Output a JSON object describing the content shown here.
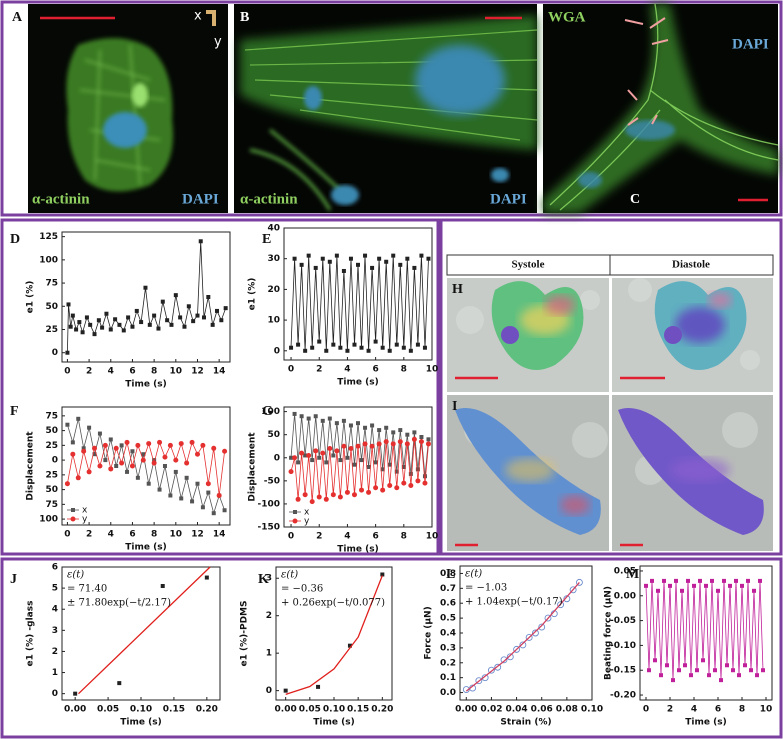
{
  "panels": [
    {
      "label": "A",
      "texts": [
        "α-actinin",
        "DAPI"
      ]
    },
    {
      "label": "B",
      "texts": [
        "α-actinin",
        "DAPI"
      ]
    },
    {
      "label": "C",
      "texts": [
        "WGA",
        "DAPI"
      ]
    }
  ],
  "axes_glyph": [
    "x",
    "y"
  ],
  "table": {
    "columns": [
      "Systole",
      "Diastole"
    ],
    "rows": [
      "H",
      "I"
    ]
  },
  "chart_data": [
    {
      "type": "line",
      "label": "D",
      "xlabel": "Time (s)",
      "ylabel": "e1 (%)",
      "xlim": [
        -0.5,
        15
      ],
      "ylim": [
        -10,
        130
      ],
      "xticks": [
        0,
        2,
        4,
        6,
        8,
        10,
        12,
        14
      ],
      "yticks": [
        0,
        25,
        50,
        75,
        100,
        125
      ],
      "series": [
        {
          "color": "#222222",
          "marker": "square",
          "line": true,
          "x": [
            0,
            0.1,
            0.3,
            0.5,
            0.8,
            1.1,
            1.4,
            1.8,
            2.1,
            2.5,
            2.9,
            3.2,
            3.6,
            4.0,
            4.4,
            4.8,
            5.2,
            5.6,
            6.0,
            6.4,
            6.8,
            7.2,
            7.6,
            8.0,
            8.4,
            8.8,
            9.2,
            9.6,
            10.0,
            10.4,
            10.8,
            11.2,
            11.6,
            12.0,
            12.3,
            12.6,
            13.0,
            13.4,
            13.8,
            14.2,
            14.6
          ],
          "values": [
            0,
            52,
            28,
            40,
            25,
            33,
            22,
            38,
            30,
            20,
            35,
            27,
            42,
            25,
            36,
            30,
            24,
            38,
            28,
            45,
            33,
            70,
            30,
            40,
            26,
            55,
            35,
            30,
            62,
            38,
            28,
            50,
            34,
            40,
            120,
            38,
            60,
            30,
            45,
            35,
            48
          ]
        }
      ]
    },
    {
      "type": "line",
      "label": "E",
      "xlabel": "Time (s)",
      "ylabel": "e1 (%)",
      "xlim": [
        -0.5,
        10
      ],
      "ylim": [
        -3,
        40
      ],
      "xticks": [
        0,
        2,
        4,
        6,
        8,
        10
      ],
      "yticks": [
        0,
        10,
        20,
        30,
        40
      ],
      "series": [
        {
          "color": "#222222",
          "marker": "square",
          "line": true,
          "x": [
            0,
            0.25,
            0.5,
            0.75,
            1,
            1.25,
            1.5,
            1.75,
            2,
            2.25,
            2.5,
            2.75,
            3,
            3.25,
            3.5,
            3.75,
            4,
            4.25,
            4.5,
            4.75,
            5,
            5.25,
            5.5,
            5.75,
            6,
            6.25,
            6.5,
            6.75,
            7,
            7.25,
            7.5,
            7.75,
            8,
            8.25,
            8.5,
            8.75,
            9,
            9.25,
            9.5,
            9.75
          ],
          "values": [
            1,
            30,
            2,
            28,
            0,
            31,
            1,
            27,
            3,
            30,
            0,
            29,
            2,
            31,
            1,
            26,
            0,
            30,
            2,
            28,
            1,
            31,
            0,
            27,
            3,
            30,
            1,
            29,
            0,
            31,
            2,
            28,
            1,
            30,
            0,
            27,
            2,
            31,
            1,
            30
          ]
        }
      ]
    },
    {
      "type": "line",
      "label": "F",
      "xlabel": "Time (s)",
      "ylabel": "Displacement",
      "legend": "lower left",
      "xlim": [
        -0.5,
        15
      ],
      "ylim": [
        -110,
        90
      ],
      "xticks": [
        0,
        2,
        4,
        6,
        8,
        10,
        12,
        14
      ],
      "yticks": [
        75,
        50,
        25,
        0,
        {
          "value": -25,
          "label": "25"
        },
        {
          "value": -50,
          "label": "50"
        },
        {
          "value": -75,
          "label": "75"
        },
        {
          "value": -100,
          "label": "100"
        }
      ],
      "series": [
        {
          "name": "x",
          "color": "#555555",
          "marker": "square",
          "line": true,
          "x": [
            0,
            0.5,
            1,
            1.5,
            2,
            2.5,
            3,
            3.5,
            4,
            4.5,
            5,
            5.5,
            6,
            6.5,
            7,
            7.5,
            8,
            8.5,
            9,
            9.5,
            10,
            10.5,
            11,
            11.5,
            12,
            12.5,
            13,
            13.5,
            14,
            14.5
          ],
          "values": [
            60,
            30,
            70,
            20,
            55,
            10,
            45,
            0,
            35,
            -10,
            25,
            -20,
            15,
            -30,
            10,
            -40,
            0,
            -50,
            -10,
            -60,
            -20,
            -65,
            -30,
            -70,
            -40,
            -80,
            -55,
            -90,
            -60,
            -85
          ]
        },
        {
          "name": "y",
          "color": "#e53030",
          "marker": "circle",
          "line": true,
          "x": [
            0,
            0.5,
            1,
            1.5,
            2,
            2.5,
            3,
            3.5,
            4,
            4.5,
            5,
            5.5,
            6,
            6.5,
            7,
            7.5,
            8,
            8.5,
            9,
            9.5,
            10,
            10.5,
            11,
            11.5,
            12,
            12.5,
            13,
            13.5,
            14,
            14.5
          ],
          "values": [
            -40,
            10,
            -30,
            15,
            -20,
            20,
            -10,
            25,
            -15,
            20,
            -5,
            30,
            -10,
            25,
            0,
            28,
            -5,
            30,
            5,
            25,
            0,
            28,
            -5,
            30,
            10,
            25,
            -40,
            20,
            -60,
            15
          ]
        }
      ]
    },
    {
      "type": "line",
      "label": "G",
      "xlabel": "Time (s)",
      "ylabel": "Displacement",
      "legend": "lower left",
      "xlim": [
        -0.5,
        10
      ],
      "ylim": [
        -150,
        110
      ],
      "xticks": [
        0,
        2,
        4,
        6,
        8,
        10
      ],
      "yticks": [
        100,
        50,
        0,
        -50,
        -100,
        -150
      ],
      "series": [
        {
          "name": "x",
          "color": "#555555",
          "marker": "square",
          "line": true,
          "x": [
            0,
            0.25,
            0.5,
            0.75,
            1,
            1.25,
            1.5,
            1.75,
            2,
            2.25,
            2.5,
            2.75,
            3,
            3.25,
            3.5,
            3.75,
            4,
            4.25,
            4.5,
            4.75,
            5,
            5.25,
            5.5,
            5.75,
            6,
            6.25,
            6.5,
            6.75,
            7,
            7.25,
            7.5,
            7.75,
            8,
            8.25,
            8.5,
            8.75,
            9,
            9.25,
            9.5,
            9.75
          ],
          "values": [
            0,
            95,
            -10,
            90,
            5,
            85,
            -5,
            90,
            0,
            80,
            -10,
            85,
            5,
            75,
            -5,
            80,
            0,
            70,
            -15,
            75,
            -5,
            65,
            -20,
            70,
            -10,
            60,
            -25,
            65,
            -15,
            55,
            -30,
            60,
            -20,
            50,
            -35,
            55,
            -25,
            45,
            -40,
            40
          ]
        },
        {
          "name": "y",
          "color": "#e53030",
          "marker": "circle",
          "line": true,
          "x": [
            0,
            0.25,
            0.5,
            0.75,
            1,
            1.25,
            1.5,
            1.75,
            2,
            2.25,
            2.5,
            2.75,
            3,
            3.25,
            3.5,
            3.75,
            4,
            4.25,
            4.5,
            4.75,
            5,
            5.25,
            5.5,
            5.75,
            6,
            6.25,
            6.5,
            6.75,
            7,
            7.25,
            7.5,
            7.75,
            8,
            8.25,
            8.5,
            8.75,
            9,
            9.25,
            9.5,
            9.75
          ],
          "values": [
            -30,
            0,
            -90,
            10,
            -80,
            5,
            -95,
            15,
            -85,
            10,
            -90,
            20,
            -80,
            15,
            -85,
            25,
            -75,
            20,
            -80,
            25,
            -70,
            30,
            -75,
            25,
            -65,
            30,
            -70,
            35,
            -60,
            30,
            -65,
            35,
            -55,
            30,
            -60,
            40,
            -50,
            35,
            -55,
            30
          ]
        }
      ]
    },
    {
      "type": "scatter",
      "label": "J",
      "xlabel": "Time (s)",
      "ylabel": "e1 (%) -glass",
      "annotation": [
        "ε(t)",
        "= 71.40",
        "± 71.80exp(−t/2.17)"
      ],
      "xlim": [
        -0.02,
        0.22
      ],
      "ylim": [
        -0.3,
        6
      ],
      "xticks": [
        {
          "value": 0,
          "label": "0.00"
        },
        0.05,
        {
          "value": 0.1,
          "label": "0.10"
        },
        0.15,
        {
          "value": 0.2,
          "label": "0.20"
        }
      ],
      "yticks": [
        0,
        1,
        2,
        3,
        4,
        5,
        6
      ],
      "series": [
        {
          "color": "#222222",
          "marker": "square",
          "line": false,
          "x": [
            0,
            0.067,
            0.133,
            0.2
          ],
          "values": [
            0,
            0.5,
            5.1,
            5.5
          ]
        },
        {
          "color": "#e0201c",
          "line": true,
          "x": [
            0.005,
            0.205
          ],
          "values": [
            0,
            6
          ]
        }
      ]
    },
    {
      "type": "scatter",
      "label": "K",
      "xlabel": "Time (s)",
      "ylabel": "e1 (%)-PDMS",
      "annotation": [
        "ε(t)",
        "= −0.36",
        "+ 0.26exp(−t/0.077)"
      ],
      "xlim": [
        -0.02,
        0.22
      ],
      "ylim": [
        -0.25,
        3.3
      ],
      "xticks": [
        {
          "value": 0,
          "label": "0.00"
        },
        0.05,
        {
          "value": 0.1,
          "label": "0.10"
        },
        0.15,
        {
          "value": 0.2,
          "label": "0.20"
        }
      ],
      "yticks": [
        0,
        1,
        2,
        3
      ],
      "series": [
        {
          "color": "#222222",
          "marker": "square",
          "line": false,
          "x": [
            0,
            0.067,
            0.133,
            0.2
          ],
          "values": [
            0,
            0.1,
            1.2,
            3.1
          ]
        },
        {
          "color": "#e0201c",
          "line": true,
          "x": [
            0,
            0.05,
            0.1,
            0.15,
            0.2
          ],
          "values": [
            -0.1,
            0.11,
            0.58,
            1.43,
            3.07
          ]
        }
      ]
    },
    {
      "type": "scatter",
      "label": "L",
      "xlabel": "Strain (%)",
      "ylabel": "Force (μN)",
      "annotation": [
        "ε(t)",
        "= −1.03",
        "+ 1.04exp(−t/0.17)"
      ],
      "xlim": [
        -0.005,
        0.1
      ],
      "ylim": [
        -0.05,
        0.85
      ],
      "xticks": [
        {
          "value": 0,
          "label": "0.00"
        },
        0.02,
        0.04,
        0.06,
        0.08,
        {
          "value": 0.1,
          "label": "0.10"
        }
      ],
      "yticks": [
        {
          "value": 0,
          "label": "0.0"
        },
        0.1,
        0.2,
        0.3,
        0.4,
        0.5,
        0.6,
        0.7,
        0.8
      ],
      "series": [
        {
          "color": "#6a8ccc",
          "marker": "open-circle",
          "line": false,
          "x": [
            0,
            0.005,
            0.01,
            0.015,
            0.02,
            0.025,
            0.03,
            0.035,
            0.04,
            0.045,
            0.05,
            0.055,
            0.06,
            0.065,
            0.07,
            0.075,
            0.08,
            0.085,
            0.09
          ],
          "values": [
            0.02,
            0.03,
            0.08,
            0.1,
            0.15,
            0.17,
            0.22,
            0.24,
            0.29,
            0.32,
            0.37,
            0.4,
            0.44,
            0.5,
            0.53,
            0.59,
            0.63,
            0.69,
            0.74
          ]
        },
        {
          "color": "#d04060",
          "line": true,
          "x": [
            0,
            0.03,
            0.06,
            0.09
          ],
          "values": [
            0.01,
            0.21,
            0.45,
            0.74
          ]
        }
      ]
    },
    {
      "type": "line",
      "label": "M",
      "xlabel": "Time (s)",
      "ylabel": "Beating force (μN)",
      "xlim": [
        -0.5,
        10.5
      ],
      "ylim": [
        -0.21,
        0.06
      ],
      "xticks": [
        0,
        2,
        4,
        6,
        8,
        10
      ],
      "yticks": [
        0.05,
        {
          "value": 0,
          "label": "0.00"
        },
        -0.05,
        {
          "value": -0.1,
          "label": "-0.10"
        },
        -0.15,
        {
          "value": -0.2,
          "label": "-0.20"
        }
      ],
      "series": [
        {
          "color": "#c0209a",
          "marker": "square",
          "line": true,
          "x": [
            0,
            0.25,
            0.5,
            0.75,
            1,
            1.25,
            1.5,
            1.75,
            2,
            2.25,
            2.5,
            2.75,
            3,
            3.25,
            3.5,
            3.75,
            4,
            4.25,
            4.5,
            4.75,
            5,
            5.25,
            5.5,
            5.75,
            6,
            6.25,
            6.5,
            6.75,
            7,
            7.25,
            7.5,
            7.75,
            8,
            8.25,
            8.5,
            8.75,
            9,
            9.25,
            9.5,
            9.75
          ],
          "values": [
            0.02,
            -0.15,
            0.03,
            -0.13,
            0.01,
            -0.16,
            0.03,
            -0.14,
            0.02,
            -0.17,
            0.03,
            -0.15,
            0.01,
            -0.14,
            0.03,
            -0.16,
            0.02,
            -0.15,
            0.03,
            -0.13,
            0.02,
            -0.16,
            0.03,
            -0.15,
            0.01,
            -0.17,
            0.03,
            -0.14,
            0.02,
            -0.15,
            0.03,
            -0.16,
            0.02,
            -0.14,
            0.03,
            -0.15,
            0.01,
            -0.16,
            0.03,
            -0.15
          ]
        }
      ]
    }
  ]
}
